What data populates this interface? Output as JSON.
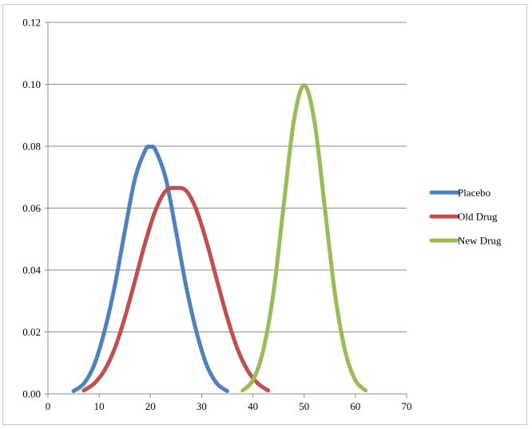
{
  "chart_data": {
    "type": "line",
    "title": "",
    "xlabel": "",
    "ylabel": "",
    "xlim": [
      0,
      70
    ],
    "ylim": [
      0,
      0.12
    ],
    "x_ticks": [
      "0",
      "10",
      "20",
      "30",
      "40",
      "50",
      "60",
      "70"
    ],
    "y_ticks": [
      "0.00",
      "0.02",
      "0.04",
      "0.06",
      "0.08",
      "0.10",
      "0.12"
    ],
    "grid": "horizontal",
    "legend_position": "right",
    "series": [
      {
        "name": "Placebo",
        "color": "#4f81bd",
        "x": [
          5,
          7,
          9,
          11,
          13,
          15,
          17,
          19,
          20,
          21,
          23,
          25,
          27,
          29,
          31,
          33,
          35
        ],
        "y": [
          0.0009,
          0.0033,
          0.0092,
          0.02,
          0.0345,
          0.0525,
          0.0696,
          0.0787,
          0.0798,
          0.0787,
          0.0696,
          0.0525,
          0.0345,
          0.02,
          0.0092,
          0.0033,
          0.0009
        ]
      },
      {
        "name": "Old Drug",
        "color": "#c0504d",
        "x": [
          7,
          9,
          11,
          13,
          15,
          17,
          19,
          21,
          23,
          25,
          27,
          29,
          31,
          33,
          35,
          37,
          39,
          41,
          43
        ],
        "y": [
          0.0011,
          0.0033,
          0.0075,
          0.0145,
          0.0246,
          0.0366,
          0.0489,
          0.0593,
          0.0656,
          0.0665,
          0.0656,
          0.0593,
          0.0489,
          0.0366,
          0.0246,
          0.0145,
          0.0075,
          0.0033,
          0.0011
        ]
      },
      {
        "name": "New Drug",
        "color": "#9bbb59",
        "x": [
          38,
          40,
          42,
          44,
          46,
          48,
          50,
          52,
          54,
          56,
          58,
          60,
          62
        ],
        "y": [
          0.0011,
          0.0044,
          0.0139,
          0.0325,
          0.0607,
          0.0882,
          0.0997,
          0.0882,
          0.0607,
          0.0325,
          0.0139,
          0.0044,
          0.0011
        ]
      }
    ]
  }
}
